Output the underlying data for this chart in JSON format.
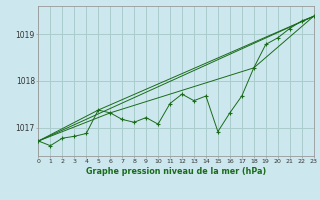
{
  "title": "Graphe pression niveau de la mer (hPa)",
  "bg_color": "#cce8ee",
  "grid_color": "#aacccc",
  "line_color": "#1a6b1a",
  "x_min": 0,
  "x_max": 23,
  "y_ticks": [
    1017,
    1018,
    1019
  ],
  "y_min": 1016.4,
  "y_max": 1019.6,
  "main_line": [
    [
      0,
      1016.72
    ],
    [
      1,
      1016.62
    ],
    [
      2,
      1016.78
    ],
    [
      3,
      1016.82
    ],
    [
      4,
      1016.88
    ],
    [
      5,
      1017.38
    ],
    [
      6,
      1017.32
    ],
    [
      7,
      1017.18
    ],
    [
      8,
      1017.12
    ],
    [
      9,
      1017.22
    ],
    [
      10,
      1017.08
    ],
    [
      11,
      1017.52
    ],
    [
      12,
      1017.72
    ],
    [
      13,
      1017.58
    ],
    [
      14,
      1017.68
    ],
    [
      15,
      1016.92
    ],
    [
      16,
      1017.32
    ],
    [
      17,
      1017.68
    ],
    [
      18,
      1018.28
    ],
    [
      19,
      1018.78
    ],
    [
      20,
      1018.92
    ],
    [
      21,
      1019.12
    ],
    [
      22,
      1019.28
    ],
    [
      23,
      1019.38
    ]
  ],
  "smooth_line1": [
    [
      0,
      1016.72
    ],
    [
      23,
      1019.38
    ]
  ],
  "smooth_line2": [
    [
      0,
      1016.72
    ],
    [
      5,
      1017.38
    ],
    [
      23,
      1019.38
    ]
  ],
  "smooth_line3": [
    [
      0,
      1016.72
    ],
    [
      6,
      1017.32
    ],
    [
      18,
      1018.28
    ],
    [
      23,
      1019.38
    ]
  ]
}
